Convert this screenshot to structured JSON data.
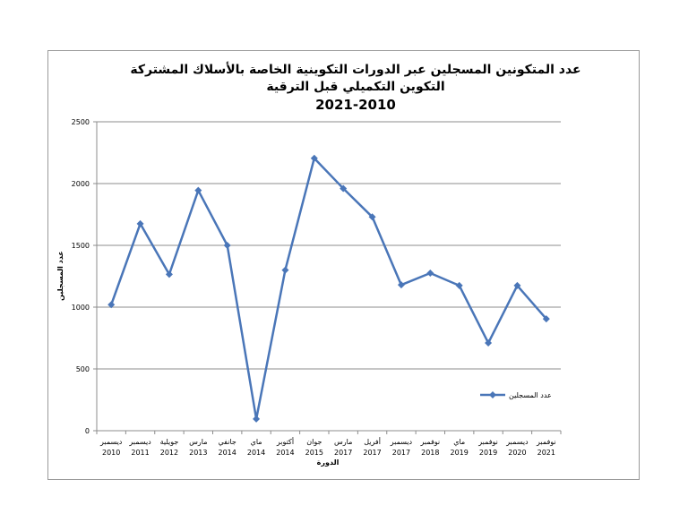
{
  "chart_data": {
    "type": "line",
    "title_lines": [
      "عدد المتكونين المسجلين عبر الدورات التكوينية الخاصة بالأسلاك المشتركة",
      "التكوين التكميلي قبل الترقية",
      "2021-2010"
    ],
    "xlabel": "الدورة",
    "ylabel": "عدد المسجلين",
    "ylim": [
      0,
      2500
    ],
    "yticks": [
      0,
      500,
      1000,
      1500,
      2000,
      2500
    ],
    "grid": true,
    "legend_position": "right",
    "categories": [
      {
        "month": "ديسمبر",
        "year": "2010"
      },
      {
        "month": "ديسمبر",
        "year": "2011"
      },
      {
        "month": "جويلية",
        "year": "2012"
      },
      {
        "month": "مارس",
        "year": "2013"
      },
      {
        "month": "جانفي",
        "year": "2014"
      },
      {
        "month": "ماي",
        "year": "2014"
      },
      {
        "month": "أكتوبر",
        "year": "2014"
      },
      {
        "month": "جوان",
        "year": "2015"
      },
      {
        "month": "مارس",
        "year": "2017"
      },
      {
        "month": "أفريل",
        "year": "2017"
      },
      {
        "month": "ديسمبر",
        "year": "2017"
      },
      {
        "month": "نوفمبر",
        "year": "2018"
      },
      {
        "month": "ماي",
        "year": "2019"
      },
      {
        "month": "نوفمبر",
        "year": "2019"
      },
      {
        "month": "ديسمبر",
        "year": "2020"
      },
      {
        "month": "نوفمبر",
        "year": "2021"
      }
    ],
    "series": [
      {
        "name": "عدد المسجلين",
        "color": "#4a76b8",
        "values": [
          1020,
          1675,
          1265,
          1945,
          1500,
          95,
          1300,
          2205,
          1960,
          1730,
          1180,
          1275,
          1175,
          710,
          1175,
          905
        ]
      }
    ]
  }
}
